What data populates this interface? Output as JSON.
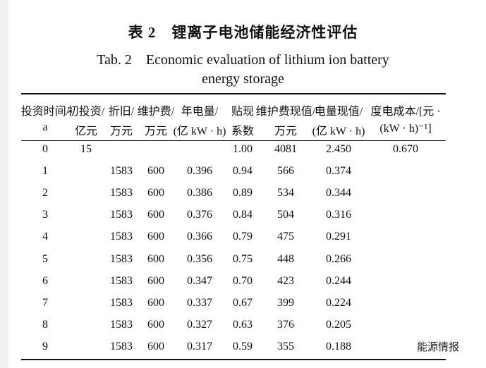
{
  "header": {
    "title": "表 2　锂离子电池储能经济性评估",
    "subtitle_en_1": "Tab. 2　Economic evaluation of lithium ion battery",
    "subtitle_en_2": "energy storage"
  },
  "table": {
    "columns": [
      [
        "投资时间/",
        "a"
      ],
      [
        "初投资/",
        "亿元"
      ],
      [
        "折旧/",
        "万元"
      ],
      [
        "维护费/",
        "万元"
      ],
      [
        "年电量/",
        "(亿 kW · h)"
      ],
      [
        "贴现",
        "系数"
      ],
      [
        "维护费现值/",
        "万元"
      ],
      [
        "电量现值/",
        "(亿 kW · h)"
      ],
      [
        "度电成本/[元 ·",
        "(kW · h)⁻¹]"
      ]
    ],
    "rows": [
      [
        "0",
        "15",
        null,
        null,
        null,
        "1.00",
        "4081",
        "2.450",
        "0.670"
      ],
      [
        "1",
        null,
        "1583",
        "600",
        "0.396",
        "0.94",
        "566",
        "0.374",
        null
      ],
      [
        "2",
        null,
        "1583",
        "600",
        "0.386",
        "0.89",
        "534",
        "0.344",
        null
      ],
      [
        "3",
        null,
        "1583",
        "600",
        "0.376",
        "0.84",
        "504",
        "0.316",
        null
      ],
      [
        "4",
        null,
        "1583",
        "600",
        "0.366",
        "0.79",
        "475",
        "0.291",
        null
      ],
      [
        "5",
        null,
        "1583",
        "600",
        "0.356",
        "0.75",
        "448",
        "0.266",
        null
      ],
      [
        "6",
        null,
        "1583",
        "600",
        "0.347",
        "0.70",
        "423",
        "0.244",
        null
      ],
      [
        "7",
        null,
        "1583",
        "600",
        "0.337",
        "0.67",
        "399",
        "0.224",
        null
      ],
      [
        "8",
        null,
        "1583",
        "600",
        "0.327",
        "0.63",
        "376",
        "0.205",
        null
      ],
      [
        "9",
        null,
        "1583",
        "600",
        "0.317",
        "0.59",
        "355",
        "0.188",
        null
      ]
    ]
  },
  "watermark": "能源情报"
}
